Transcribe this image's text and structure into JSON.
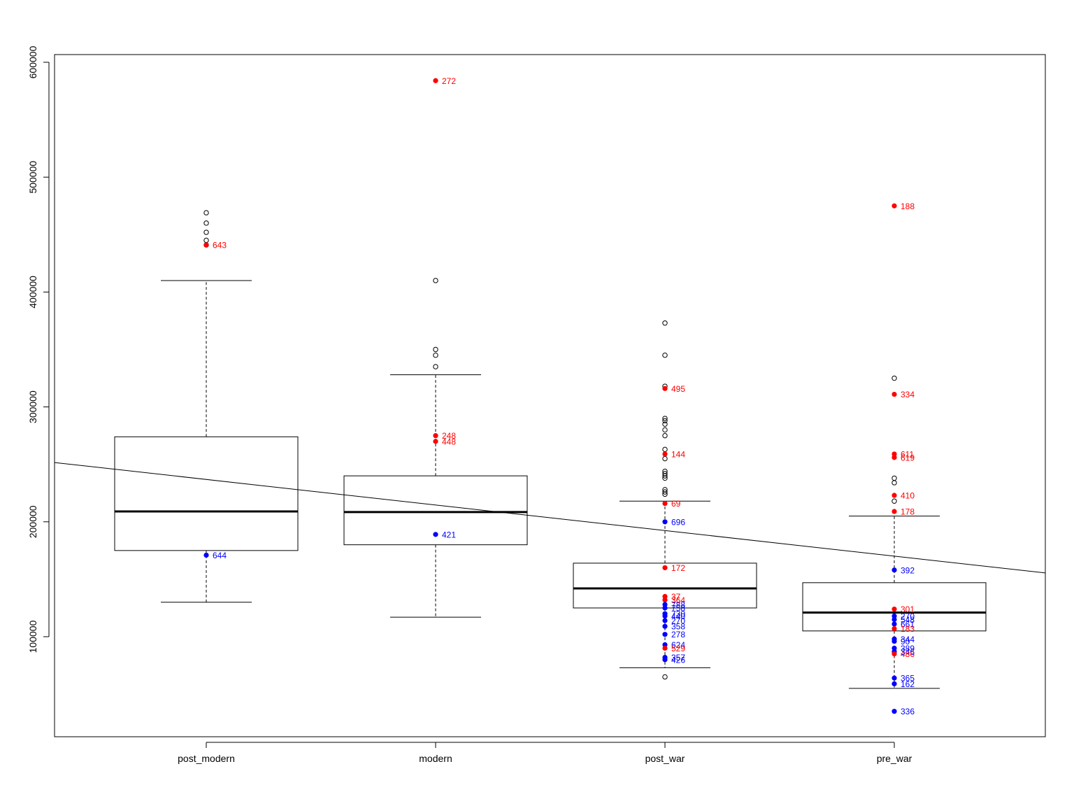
{
  "chart_data": {
    "type": "boxplot",
    "title": "",
    "xlabel": "",
    "ylabel": "",
    "ylim": [
      10000,
      610000
    ],
    "y_ticks": [
      100000,
      200000,
      300000,
      400000,
      500000,
      600000
    ],
    "y_tick_labels": [
      "100000",
      "200000",
      "300000",
      "400000",
      "500000",
      "600000"
    ],
    "categories": [
      "post_modern",
      "modern",
      "post_war",
      "pre_war"
    ],
    "boxes": [
      {
        "category": "post_modern",
        "whisker_low": 130000,
        "q1": 175000,
        "median": 209000,
        "q3": 274000,
        "whisker_high": 410000,
        "outliers": [
          441000,
          445000,
          452000,
          460000,
          469000
        ]
      },
      {
        "category": "modern",
        "whisker_low": 117000,
        "q1": 180000,
        "median": 208500,
        "q3": 240000,
        "whisker_high": 328000,
        "outliers": [
          335000,
          345000,
          350000,
          410000
        ]
      },
      {
        "category": "post_war",
        "whisker_low": 73000,
        "q1": 125000,
        "median": 142000,
        "q3": 164000,
        "whisker_high": 218000,
        "outliers": [
          65000,
          224000,
          226000,
          228000,
          238000,
          240000,
          242000,
          244000,
          255000,
          263000,
          275000,
          280000,
          285000,
          288000,
          290000,
          318000,
          345000,
          373000
        ]
      },
      {
        "category": "pre_war",
        "whisker_low": 55000,
        "q1": 105000,
        "median": 121000,
        "q3": 147000,
        "whisker_high": 205000,
        "outliers": [
          218000,
          234000,
          238000,
          325000
        ]
      }
    ],
    "regression_line": {
      "x": [
        0.5,
        4.5
      ],
      "y": [
        248000,
        159000
      ]
    },
    "highlight_colors": {
      "high": "#ff0000",
      "low": "#0000ff"
    },
    "highlighted_points": [
      {
        "category": "post_modern",
        "value": 441000,
        "label": "643",
        "color": "high"
      },
      {
        "category": "post_modern",
        "value": 171000,
        "label": "644",
        "color": "low"
      },
      {
        "category": "modern",
        "value": 584000,
        "label": "272",
        "color": "high"
      },
      {
        "category": "modern",
        "value": 275000,
        "label": "248",
        "color": "high"
      },
      {
        "category": "modern",
        "value": 270000,
        "label": "448",
        "color": "high"
      },
      {
        "category": "modern",
        "value": 189000,
        "label": "421",
        "color": "low"
      },
      {
        "category": "post_war",
        "value": 316000,
        "label": "495",
        "color": "high"
      },
      {
        "category": "post_war",
        "value": 259000,
        "label": "144",
        "color": "high"
      },
      {
        "category": "post_war",
        "value": 216000,
        "label": "69",
        "color": "high"
      },
      {
        "category": "post_war",
        "value": 200000,
        "label": "696",
        "color": "low"
      },
      {
        "category": "post_war",
        "value": 160000,
        "label": "172",
        "color": "high"
      },
      {
        "category": "post_war",
        "value": 135000,
        "label": "37",
        "color": "high"
      },
      {
        "category": "post_war",
        "value": 132000,
        "label": "364",
        "color": "high"
      },
      {
        "category": "post_war",
        "value": 128000,
        "label": "788",
        "color": "low"
      },
      {
        "category": "post_war",
        "value": 125000,
        "label": "758",
        "color": "low"
      },
      {
        "category": "post_war",
        "value": 120000,
        "label": "730",
        "color": "low"
      },
      {
        "category": "post_war",
        "value": 118000,
        "label": "440",
        "color": "low"
      },
      {
        "category": "post_war",
        "value": 114000,
        "label": "270",
        "color": "low"
      },
      {
        "category": "post_war",
        "value": 109000,
        "label": "358",
        "color": "low"
      },
      {
        "category": "post_war",
        "value": 102000,
        "label": "278",
        "color": "low"
      },
      {
        "category": "post_war",
        "value": 93000,
        "label": "624",
        "color": "low"
      },
      {
        "category": "post_war",
        "value": 90000,
        "label": "529",
        "color": "high"
      },
      {
        "category": "post_war",
        "value": 82000,
        "label": "357",
        "color": "low"
      },
      {
        "category": "post_war",
        "value": 80000,
        "label": "426",
        "color": "low"
      },
      {
        "category": "pre_war",
        "value": 475000,
        "label": "188",
        "color": "high"
      },
      {
        "category": "pre_war",
        "value": 311000,
        "label": "334",
        "color": "high"
      },
      {
        "category": "pre_war",
        "value": 259000,
        "label": "611",
        "color": "high"
      },
      {
        "category": "pre_war",
        "value": 256000,
        "label": "619",
        "color": "high"
      },
      {
        "category": "pre_war",
        "value": 223000,
        "label": "410",
        "color": "high"
      },
      {
        "category": "pre_war",
        "value": 209000,
        "label": "178",
        "color": "high"
      },
      {
        "category": "pre_war",
        "value": 158000,
        "label": "392",
        "color": "low"
      },
      {
        "category": "pre_war",
        "value": 124000,
        "label": "301",
        "color": "high"
      },
      {
        "category": "pre_war",
        "value": 118000,
        "label": "270",
        "color": "low"
      },
      {
        "category": "pre_war",
        "value": 115000,
        "label": "548",
        "color": "low"
      },
      {
        "category": "pre_war",
        "value": 111000,
        "label": "661",
        "color": "low"
      },
      {
        "category": "pre_war",
        "value": 107000,
        "label": "183",
        "color": "high"
      },
      {
        "category": "pre_war",
        "value": 98000,
        "label": "344",
        "color": "low"
      },
      {
        "category": "pre_war",
        "value": 96000,
        "label": "90",
        "color": "low"
      },
      {
        "category": "pre_war",
        "value": 90000,
        "label": "389",
        "color": "low"
      },
      {
        "category": "pre_war",
        "value": 87000,
        "label": "346",
        "color": "low"
      },
      {
        "category": "pre_war",
        "value": 85000,
        "label": "486",
        "color": "high"
      },
      {
        "category": "pre_war",
        "value": 64000,
        "label": "365",
        "color": "low"
      },
      {
        "category": "pre_war",
        "value": 59000,
        "label": "162",
        "color": "low"
      },
      {
        "category": "pre_war",
        "value": 35000,
        "label": "336",
        "color": "low"
      }
    ]
  }
}
